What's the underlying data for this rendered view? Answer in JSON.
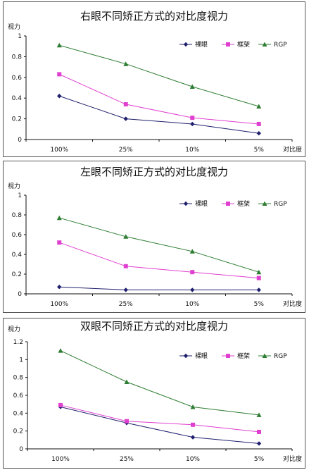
{
  "chart_data": [
    {
      "type": "line",
      "title": "右眼不同矫正方式的对比度视力",
      "ylabel": "视力",
      "xlabel": "对比度",
      "categories": [
        "100%",
        "25%",
        "10%",
        "5%"
      ],
      "ylim": [
        0,
        1
      ],
      "yticks": [
        "0",
        "0.2",
        "0.4",
        "0.6",
        "0.8",
        "1"
      ],
      "legend_position": "top-right",
      "series": [
        {
          "name": "裸眼",
          "color": "#1f1f6e",
          "marker": "diamond",
          "values": [
            0.42,
            0.2,
            0.15,
            0.06
          ]
        },
        {
          "name": "框架",
          "color": "#e040d0",
          "marker": "square",
          "values": [
            0.63,
            0.34,
            0.21,
            0.15
          ]
        },
        {
          "name": "RGP",
          "color": "#2e7d32",
          "marker": "triangle",
          "values": [
            0.91,
            0.73,
            0.51,
            0.32
          ]
        }
      ]
    },
    {
      "type": "line",
      "title": "左眼不同矫正方式的对比度视力",
      "ylabel": "视力",
      "xlabel": "对比度",
      "categories": [
        "100%",
        "25%",
        "10%",
        "5%"
      ],
      "ylim": [
        0,
        1
      ],
      "yticks": [
        "0",
        "0.2",
        "0.4",
        "0.6",
        "0.8",
        "1"
      ],
      "legend_position": "top-right",
      "series": [
        {
          "name": "裸眼",
          "color": "#1f1f6e",
          "marker": "diamond",
          "values": [
            0.07,
            0.04,
            0.04,
            0.04
          ]
        },
        {
          "name": "框架",
          "color": "#e040d0",
          "marker": "square",
          "values": [
            0.52,
            0.28,
            0.22,
            0.16
          ]
        },
        {
          "name": "RGP",
          "color": "#2e7d32",
          "marker": "triangle",
          "values": [
            0.77,
            0.58,
            0.43,
            0.22
          ]
        }
      ]
    },
    {
      "type": "line",
      "title": "双眼不同矫正方式的对比度视力",
      "ylabel": "视力",
      "xlabel": "对比度",
      "categories": [
        "100%",
        "25%",
        "10%",
        "5%"
      ],
      "ylim": [
        0,
        1.2
      ],
      "yticks": [
        "0",
        "0.2",
        "0.4",
        "0.6",
        "0.8",
        "1",
        "1.2"
      ],
      "legend_position": "top-right",
      "series": [
        {
          "name": "裸眼",
          "color": "#1f1f6e",
          "marker": "diamond",
          "values": [
            0.47,
            0.29,
            0.13,
            0.06
          ]
        },
        {
          "name": "框架",
          "color": "#e040d0",
          "marker": "square",
          "values": [
            0.49,
            0.31,
            0.27,
            0.19
          ]
        },
        {
          "name": "RGP",
          "color": "#2e7d32",
          "marker": "triangle",
          "values": [
            1.1,
            0.75,
            0.47,
            0.38
          ]
        }
      ]
    }
  ]
}
